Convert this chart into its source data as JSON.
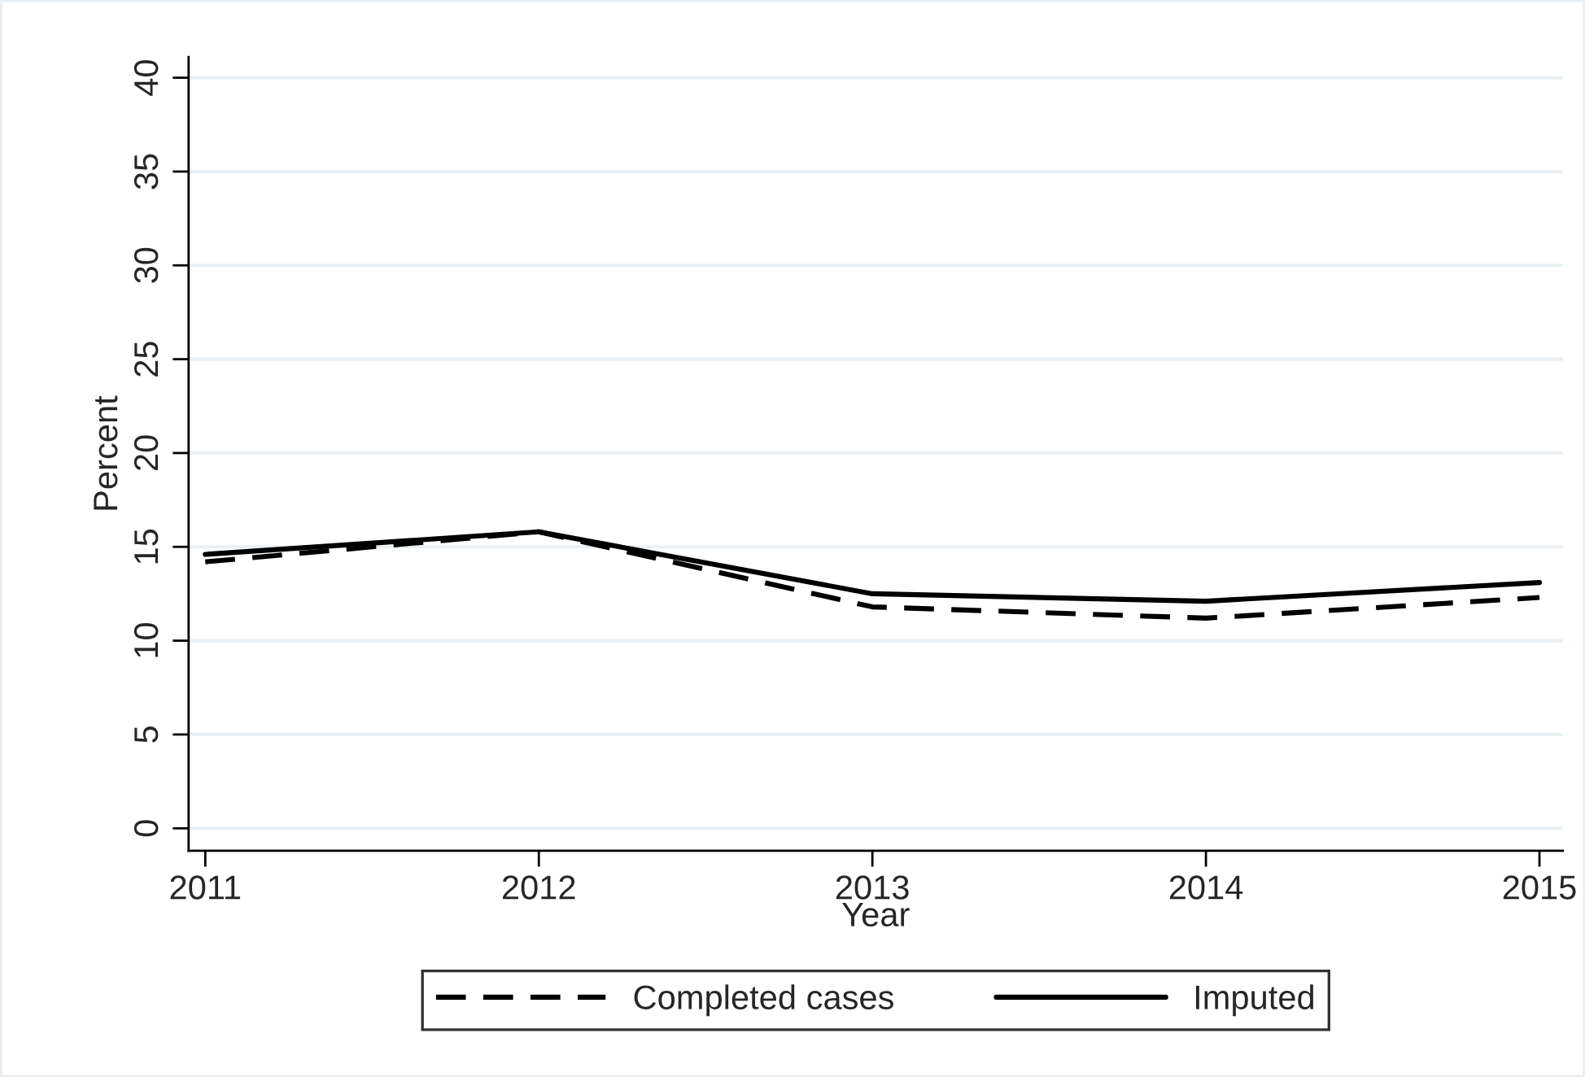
{
  "chart_data": {
    "type": "line",
    "xlabel": "Year",
    "ylabel": "Percent",
    "x": [
      2011,
      2012,
      2013,
      2014,
      2015
    ],
    "series": [
      {
        "name": "Completed cases",
        "color": "#000000",
        "line_style": "dashed",
        "values": [
          14.2,
          15.8,
          11.8,
          11.2,
          12.3
        ]
      },
      {
        "name": "Imputed",
        "color": "#000000",
        "line_style": "solid",
        "values": [
          14.6,
          15.8,
          12.5,
          12.1,
          13.1
        ]
      }
    ],
    "xlim": [
      2010.95,
      2015.07
    ],
    "xticks": [
      2011,
      2012,
      2013,
      2014,
      2015
    ],
    "ylim": [
      -1.2,
      41.1
    ],
    "yticks": [
      0,
      5,
      10,
      15,
      20,
      25,
      30,
      35,
      40
    ],
    "grid": "y",
    "legend": "bottom",
    "marker": "none"
  }
}
